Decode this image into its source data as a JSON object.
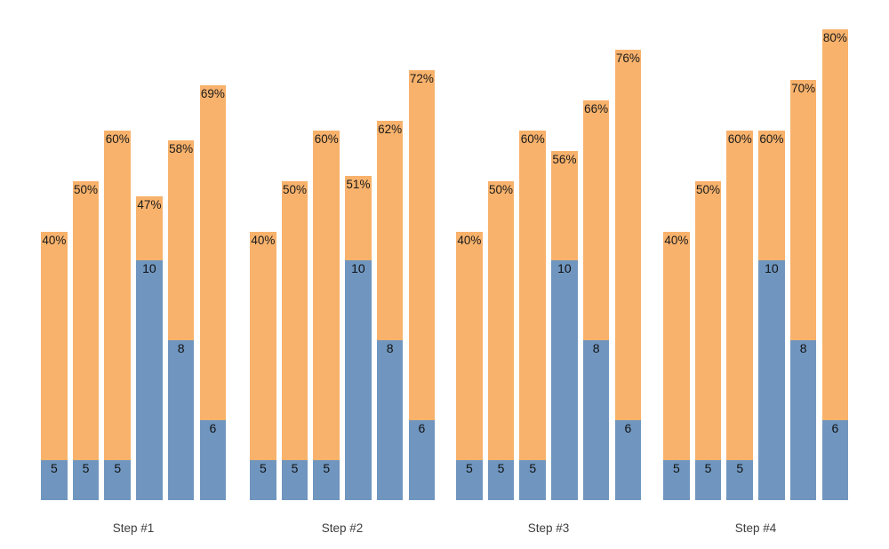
{
  "chart_data": {
    "type": "bar",
    "subtype": "grouped-stacked",
    "title": "",
    "xlabel": "",
    "ylabel": "",
    "axes_visible": false,
    "gridlines": false,
    "legend": "none",
    "background_color": "#ffffff",
    "colors": {
      "base_segment": "#7096BF",
      "top_segment": "#F8B26C",
      "bar_label_text": "#1a1a1a",
      "group_label_text": "#3d3d3d"
    },
    "groups": [
      {
        "label": "Step #1",
        "bars": [
          {
            "pct": 40,
            "pct_label": "40%",
            "count": 5,
            "count_label": "5"
          },
          {
            "pct": 50,
            "pct_label": "50%",
            "count": 5,
            "count_label": "5"
          },
          {
            "pct": 60,
            "pct_label": "60%",
            "count": 5,
            "count_label": "5"
          },
          {
            "pct": 47,
            "pct_label": "47%",
            "count": 10,
            "count_label": "10"
          },
          {
            "pct": 58,
            "pct_label": "58%",
            "count": 8,
            "count_label": "8"
          },
          {
            "pct": 69,
            "pct_label": "69%",
            "count": 6,
            "count_label": "6"
          }
        ]
      },
      {
        "label": "Step #2",
        "bars": [
          {
            "pct": 40,
            "pct_label": "40%",
            "count": 5,
            "count_label": "5"
          },
          {
            "pct": 50,
            "pct_label": "50%",
            "count": 5,
            "count_label": "5"
          },
          {
            "pct": 60,
            "pct_label": "60%",
            "count": 5,
            "count_label": "5"
          },
          {
            "pct": 51,
            "pct_label": "51%",
            "count": 10,
            "count_label": "10"
          },
          {
            "pct": 62,
            "pct_label": "62%",
            "count": 8,
            "count_label": "8"
          },
          {
            "pct": 72,
            "pct_label": "72%",
            "count": 6,
            "count_label": "6"
          }
        ]
      },
      {
        "label": "Step #3",
        "bars": [
          {
            "pct": 40,
            "pct_label": "40%",
            "count": 5,
            "count_label": "5"
          },
          {
            "pct": 50,
            "pct_label": "50%",
            "count": 5,
            "count_label": "5"
          },
          {
            "pct": 60,
            "pct_label": "60%",
            "count": 5,
            "count_label": "5"
          },
          {
            "pct": 56,
            "pct_label": "56%",
            "count": 10,
            "count_label": "10"
          },
          {
            "pct": 66,
            "pct_label": "66%",
            "count": 8,
            "count_label": "8"
          },
          {
            "pct": 76,
            "pct_label": "76%",
            "count": 6,
            "count_label": "6"
          }
        ]
      },
      {
        "label": "Step #4",
        "bars": [
          {
            "pct": 40,
            "pct_label": "40%",
            "count": 5,
            "count_label": "5"
          },
          {
            "pct": 50,
            "pct_label": "50%",
            "count": 5,
            "count_label": "5"
          },
          {
            "pct": 60,
            "pct_label": "60%",
            "count": 5,
            "count_label": "5"
          },
          {
            "pct": 60,
            "pct_label": "60%",
            "count": 10,
            "count_label": "10"
          },
          {
            "pct": 70,
            "pct_label": "70%",
            "count": 8,
            "count_label": "8"
          },
          {
            "pct": 80,
            "pct_label": "80%",
            "count": 6,
            "count_label": "6"
          }
        ]
      }
    ]
  }
}
